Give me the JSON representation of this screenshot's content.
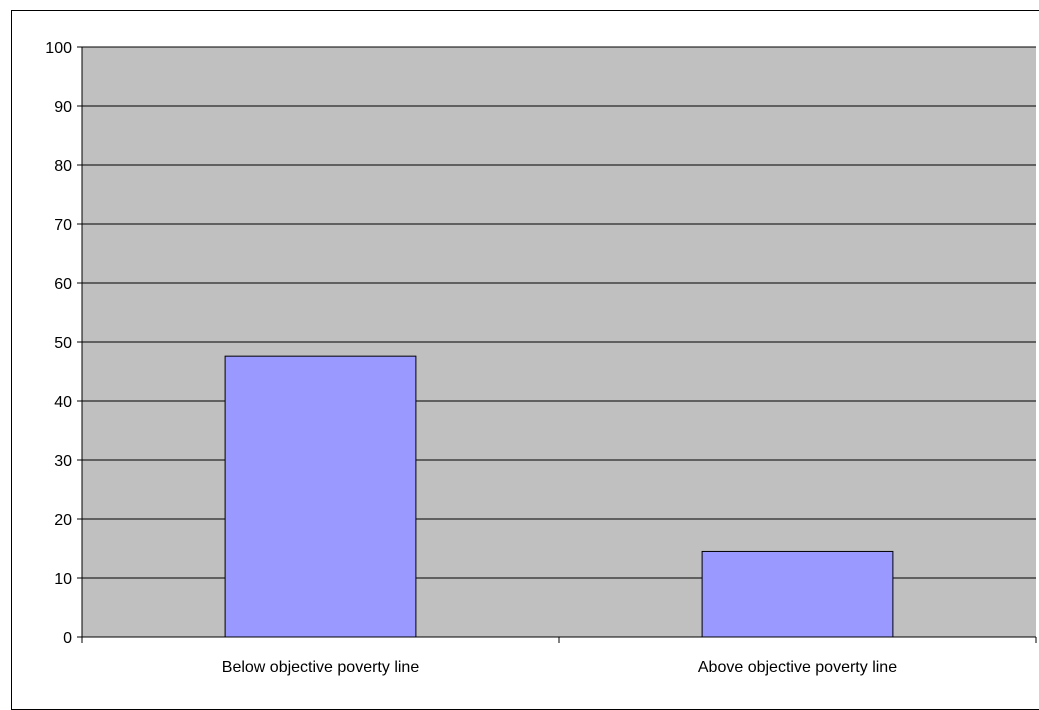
{
  "chart_data": {
    "type": "bar",
    "title": "",
    "xlabel": "",
    "ylabel": "",
    "categories": [
      "Below objective poverty line",
      "Above objective poverty line"
    ],
    "series": [
      {
        "values": [
          47.6,
          14.5
        ]
      }
    ],
    "ylim": [
      0,
      100
    ],
    "yticks": [
      0,
      10,
      20,
      30,
      40,
      50,
      60,
      70,
      80,
      90,
      100
    ],
    "grid": true,
    "legend": "none",
    "colors": {
      "plot_background": "#c0c0c0",
      "bar_fill": "#9999ff",
      "bar_stroke": "#000000",
      "gridline": "#000000"
    }
  }
}
